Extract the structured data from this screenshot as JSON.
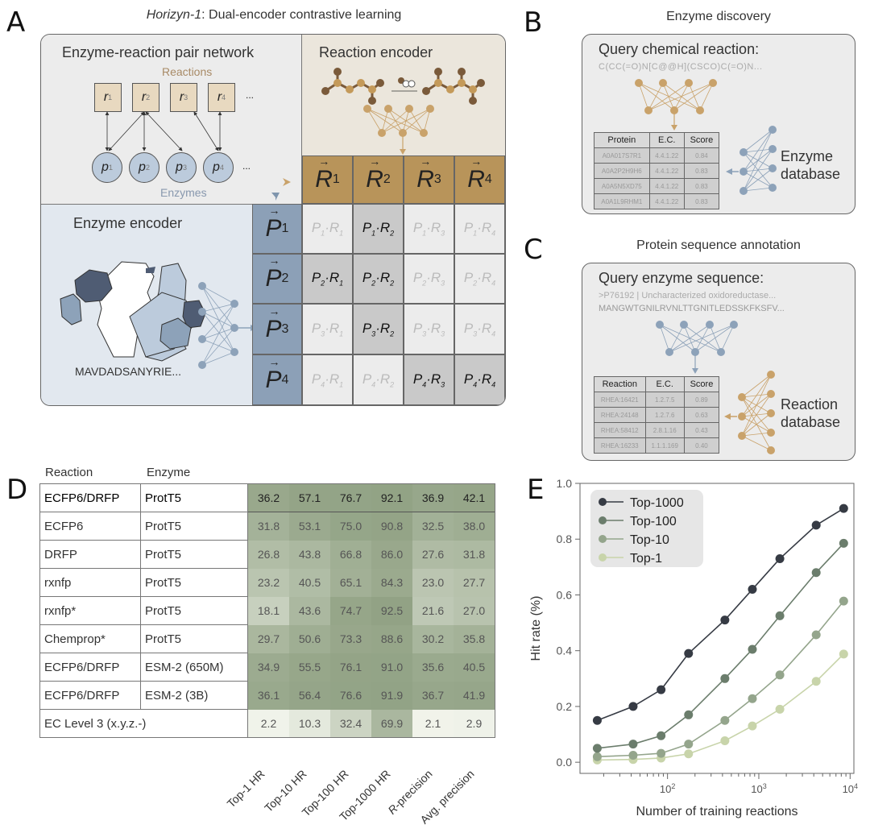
{
  "panel_labels": {
    "A": "A",
    "B": "B",
    "C": "C",
    "D": "D",
    "E": "E"
  },
  "panelA": {
    "title_italic": "Horizyn-1",
    "title_rest": ": Dual-encoder contrastive learning",
    "network": {
      "title": "Enzyme-reaction pair network",
      "reactions_label": "Reactions",
      "enzymes_label": "Enzymes",
      "reactions": [
        "r",
        "r",
        "r",
        "r"
      ],
      "reaction_subs": [
        "1",
        "2",
        "3",
        "4"
      ],
      "enzymes": [
        "p",
        "p",
        "p",
        "p"
      ],
      "enzyme_subs": [
        "1",
        "2",
        "3",
        "4"
      ],
      "ellipsis": "..."
    },
    "reaction_encoder": {
      "title": "Reaction encoder"
    },
    "enzyme_encoder": {
      "title": "Enzyme encoder",
      "sequence": "MAVDADSANYRIE..."
    },
    "matrix": {
      "R": [
        "R",
        "R",
        "R",
        "R"
      ],
      "P": [
        "P",
        "P",
        "P",
        "P"
      ],
      "subs": [
        "1",
        "2",
        "3",
        "4"
      ],
      "highlight": [
        [
          0,
          1
        ],
        [
          1,
          0
        ],
        [
          1,
          1
        ],
        [
          2,
          1
        ],
        [
          3,
          2
        ],
        [
          3,
          3
        ]
      ]
    }
  },
  "panelB": {
    "title": "Enzyme discovery",
    "query_label": "Query chemical reaction:",
    "query_value": "C(CC(=O)N[C@@H](CSCO)C(=O)N...",
    "db_label_1": "Enzyme",
    "db_label_2": "database",
    "table": {
      "headers": [
        "Protein",
        "E.C.",
        "Score"
      ],
      "rows": [
        [
          "A0A017S7R1",
          "4.4.1.22",
          "0.84"
        ],
        [
          "A0A2P2H9H6",
          "4.4.1.22",
          "0.83"
        ],
        [
          "A0A5N5XD75",
          "4.4.1.22",
          "0.83"
        ],
        [
          "A0A1L9RHM1",
          "4.4.1.22",
          "0.83"
        ]
      ]
    }
  },
  "panelC": {
    "title": "Protein sequence annotation",
    "query_label": "Query enzyme sequence:",
    "query_line1": ">P76192 | Uncharacterized oxidoreductase...",
    "query_line2": "MANGWTGNILRVNLTTGNITLEDSSKFKSFV...",
    "db_label_1": "Reaction",
    "db_label_2": "database",
    "table": {
      "headers": [
        "Reaction",
        "E.C.",
        "Score"
      ],
      "rows": [
        [
          "RHEA:16421",
          "1.2.7.5",
          "0.89"
        ],
        [
          "RHEA:24148",
          "1.2.7.6",
          "0.63"
        ],
        [
          "RHEA:58412",
          "2.8.1.16",
          "0.43"
        ],
        [
          "RHEA:16233",
          "1.1.1.169",
          "0.40"
        ]
      ]
    }
  },
  "panelD": {
    "col_reaction": "Reaction",
    "col_enzyme": "Enzyme",
    "metrics": [
      "Top-1 HR",
      "Top-10 HR",
      "Top-100 HR",
      "Top-1000 HR",
      "R-precision",
      "Avg. precision"
    ],
    "rows": [
      {
        "reaction": "ECFP6/DRFP",
        "enzyme": "ProtT5",
        "values": [
          "36.2",
          "57.1",
          "76.7",
          "92.1",
          "36.9",
          "42.1"
        ],
        "bold": true
      },
      {
        "reaction": "ECFP6",
        "enzyme": "ProtT5",
        "values": [
          "31.8",
          "53.1",
          "75.0",
          "90.8",
          "32.5",
          "38.0"
        ]
      },
      {
        "reaction": "DRFP",
        "enzyme": "ProtT5",
        "values": [
          "26.8",
          "43.8",
          "66.8",
          "86.0",
          "27.6",
          "31.8"
        ]
      },
      {
        "reaction": "rxnfp",
        "enzyme": "ProtT5",
        "values": [
          "23.2",
          "40.5",
          "65.1",
          "84.3",
          "23.0",
          "27.7"
        ]
      },
      {
        "reaction": "rxnfp*",
        "enzyme": "ProtT5",
        "values": [
          "18.1",
          "43.6",
          "74.7",
          "92.5",
          "21.6",
          "27.0"
        ]
      },
      {
        "reaction": "Chemprop*",
        "enzyme": "ProtT5",
        "values": [
          "29.7",
          "50.6",
          "73.3",
          "88.6",
          "30.2",
          "35.8"
        ]
      },
      {
        "reaction": "ECFP6/DRFP",
        "enzyme": "ESM-2 (650M)",
        "values": [
          "34.9",
          "55.5",
          "76.1",
          "91.0",
          "35.6",
          "40.5"
        ]
      },
      {
        "reaction": "ECFP6/DRFP",
        "enzyme": "ESM-2 (3B)",
        "values": [
          "36.1",
          "56.4",
          "76.6",
          "91.9",
          "36.7",
          "41.9"
        ]
      },
      {
        "reaction": "EC Level 3 (x.y.z.-)",
        "enzyme": "",
        "values": [
          "2.2",
          "10.3",
          "32.4",
          "69.9",
          "2.1",
          "2.9"
        ],
        "span": true
      }
    ]
  },
  "chart_data": {
    "type": "line",
    "title": "",
    "xlabel": "Number of training reactions",
    "ylabel": "Hit rate (%)",
    "xscale": "log",
    "xlim": [
      11,
      11000
    ],
    "ylim": [
      -0.04,
      1.0
    ],
    "yticks": [
      "0.0",
      "0.2",
      "0.4",
      "0.6",
      "0.8",
      "1.0"
    ],
    "ytick_values": [
      0,
      0.2,
      0.4,
      0.6,
      0.8,
      1.0
    ],
    "xticks": [
      {
        "base": "10",
        "exp": "2",
        "value": 100
      },
      {
        "base": "10",
        "exp": "3",
        "value": 1000
      },
      {
        "base": "10",
        "exp": "4",
        "value": 10000
      }
    ],
    "legend_position": "top-left",
    "x": [
      17,
      42,
      85,
      170,
      425,
      850,
      1700,
      4250,
      8500
    ],
    "series": [
      {
        "name": "Top-1000",
        "color": "#363b44",
        "values": [
          0.15,
          0.2,
          0.26,
          0.39,
          0.51,
          0.62,
          0.73,
          0.85,
          0.91
        ]
      },
      {
        "name": "Top-100",
        "color": "#6b7d6c",
        "values": [
          0.05,
          0.065,
          0.095,
          0.17,
          0.3,
          0.405,
          0.525,
          0.68,
          0.785
        ]
      },
      {
        "name": "Top-10",
        "color": "#94a58c",
        "values": [
          0.02,
          0.025,
          0.032,
          0.065,
          0.15,
          0.228,
          0.313,
          0.457,
          0.578
        ]
      },
      {
        "name": "Top-1",
        "color": "#c8d4aa",
        "values": [
          0.008,
          0.01,
          0.015,
          0.03,
          0.077,
          0.13,
          0.19,
          0.29,
          0.388
        ]
      }
    ]
  }
}
